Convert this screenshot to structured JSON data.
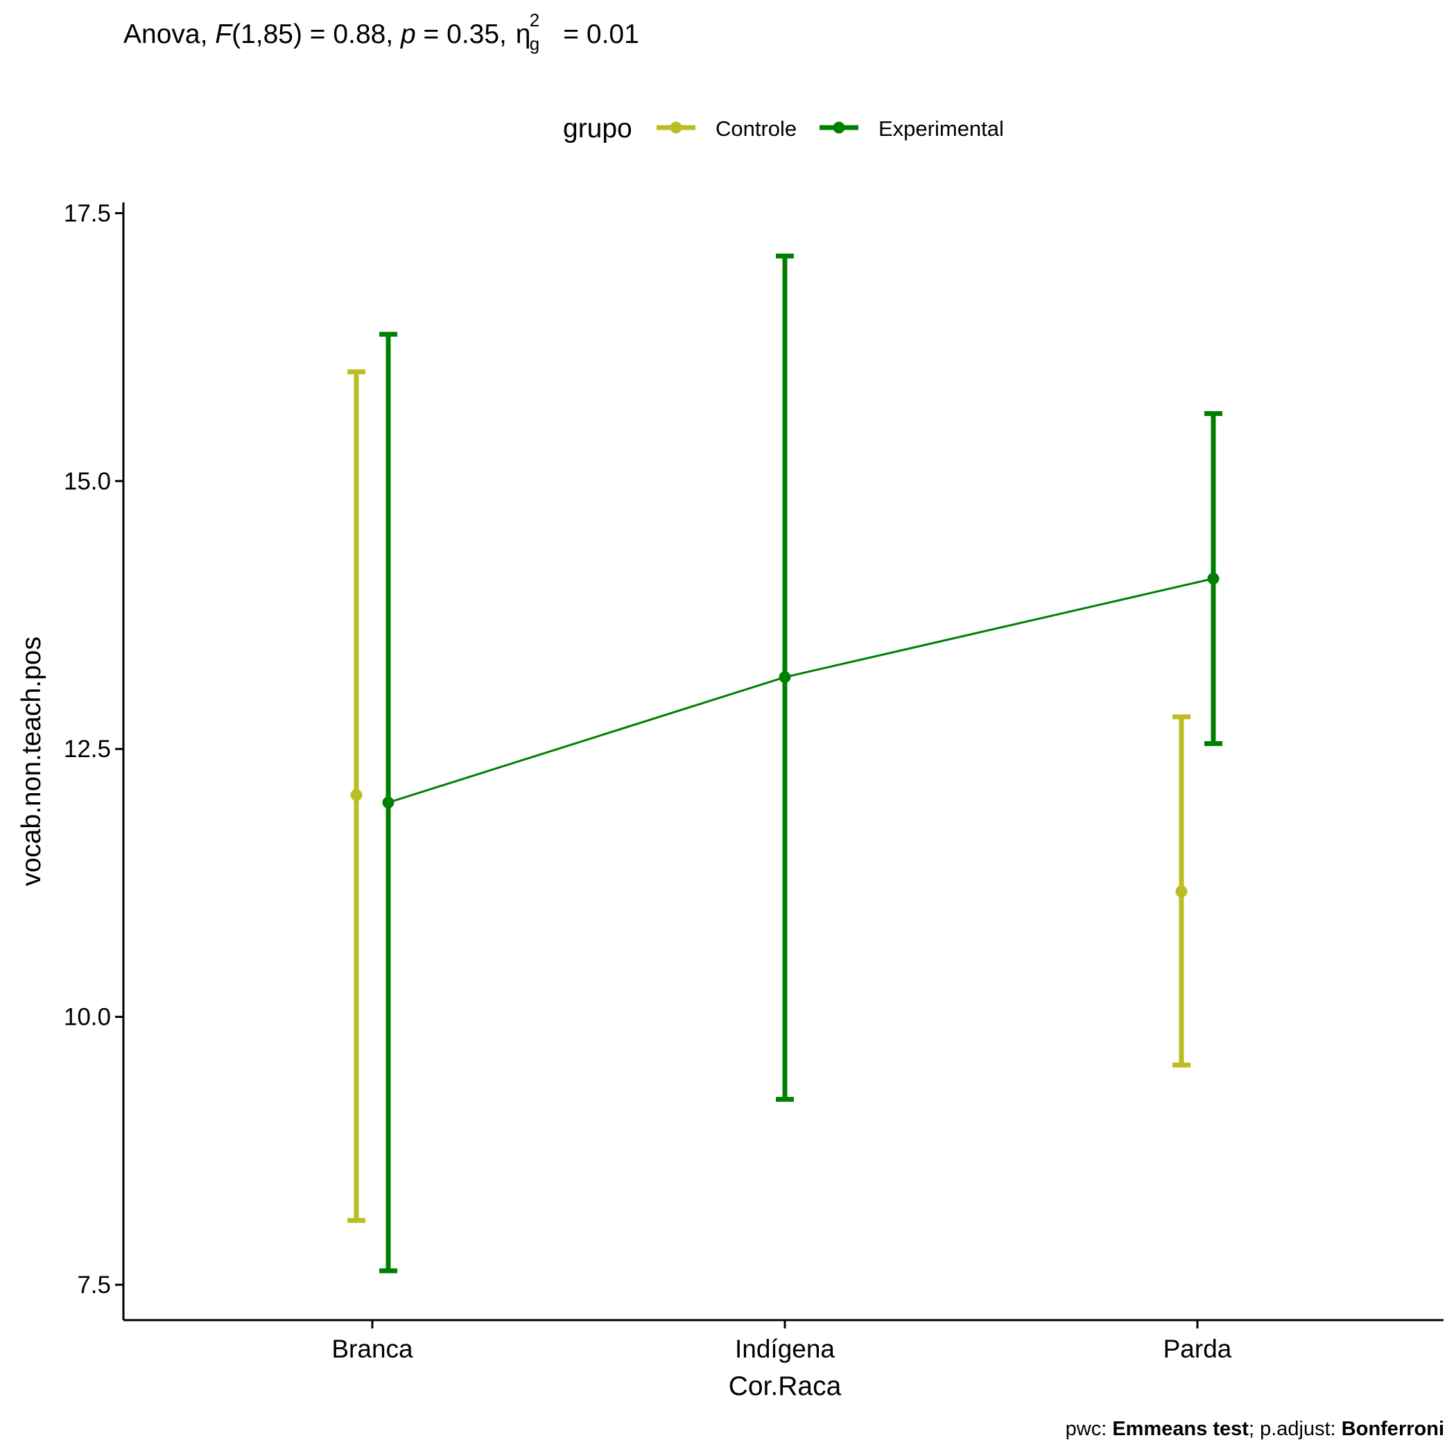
{
  "title": {
    "prefix": "Anova, ",
    "F": "F",
    "df": "(1,85) = 0.88, ",
    "p": "p",
    "p_value": " = 0.35, ",
    "eta": "η",
    "eta_sup": "2",
    "eta_sub": "g",
    "eta_value": " = 0.01"
  },
  "caption": {
    "pwc_label": "pwc: ",
    "pwc_value": "Emmeans test",
    "sep": "; p.adjust: ",
    "adjust_value": "Bonferroni"
  },
  "colors": {
    "Controle": "#bcbd22",
    "Experimental": "#008000"
  },
  "chart_data": {
    "type": "line",
    "xlabel": "Cor.Raca",
    "ylabel": "vocab.non.teach.pos",
    "categories": [
      "Branca",
      "Indígena",
      "Parda"
    ],
    "ylim": [
      7.17,
      17.6
    ],
    "yticks": [
      "7.5",
      "10.0",
      "12.5",
      "15.0",
      "17.5"
    ],
    "legend": {
      "title": "grupo",
      "position": "top",
      "entries": [
        "Controle",
        "Experimental"
      ]
    },
    "grid": false,
    "series": [
      {
        "name": "Controle",
        "connected": false,
        "points": [
          {
            "category": "Branca",
            "mean": 12.07,
            "lower": 8.1,
            "upper": 16.02
          },
          {
            "category": "Parda",
            "mean": 11.17,
            "lower": 9.55,
            "upper": 12.8
          }
        ]
      },
      {
        "name": "Experimental",
        "connected": true,
        "points": [
          {
            "category": "Branca",
            "mean": 12.0,
            "lower": 7.63,
            "upper": 16.37
          },
          {
            "category": "Indígena",
            "mean": 13.17,
            "lower": 9.23,
            "upper": 17.1
          },
          {
            "category": "Parda",
            "mean": 14.09,
            "lower": 12.55,
            "upper": 15.63
          }
        ]
      }
    ]
  }
}
